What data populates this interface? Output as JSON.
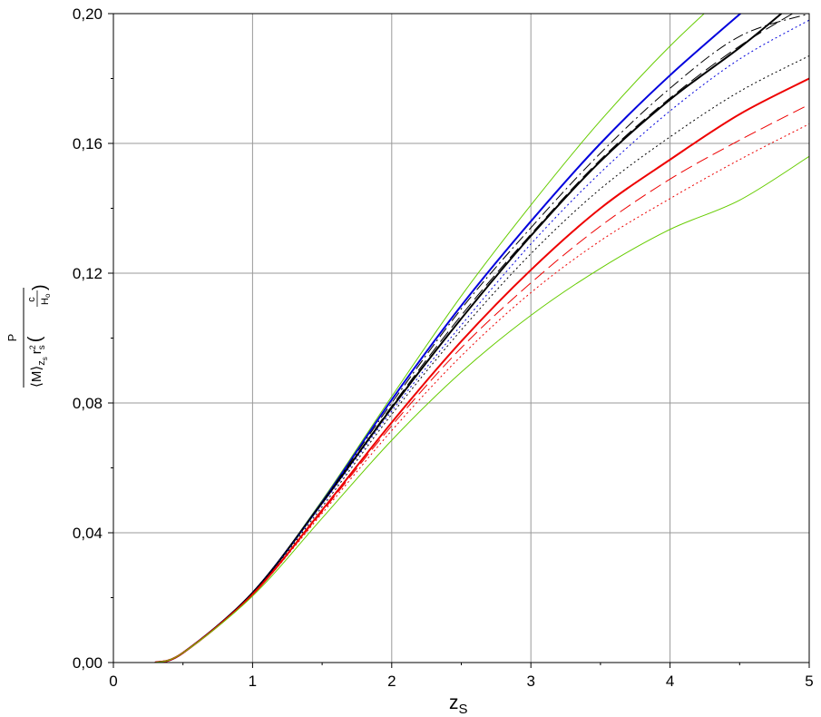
{
  "chart_data": {
    "type": "line",
    "title": "",
    "xlabel": "z",
    "xlabel_sub": "S",
    "ylabel": {
      "numerator": "P",
      "left": "⟨M⟩",
      "left_sub": "z",
      "left_subsub": "s",
      "r": "r",
      "r_sup": "2",
      "r_sub": "s",
      "frac_num": "c",
      "frac_den": "H",
      "frac_den_sub": "o"
    },
    "xlim": [
      0,
      5
    ],
    "ylim": [
      0,
      0.2
    ],
    "xticks": [
      0,
      1,
      2,
      3,
      4,
      5
    ],
    "xtick_labels": [
      "0",
      "1",
      "2",
      "3",
      "4",
      "5"
    ],
    "yticks": [
      0,
      0.04,
      0.08,
      0.12,
      0.16,
      0.2
    ],
    "ytick_labels": [
      "0,00",
      "0,04",
      "0,08",
      "0,12",
      "0,16",
      "0,20"
    ],
    "grid": true,
    "legend": "none",
    "series": [
      {
        "color": "#66cc00",
        "style": "solid",
        "width": 1,
        "x": [
          0.3,
          0.5,
          1,
          1.5,
          2,
          2.5,
          3,
          3.5,
          4,
          4.5
        ],
        "y": [
          0,
          0.003,
          0.0215,
          0.05,
          0.082,
          0.113,
          0.141,
          0.167,
          0.19,
          0.21
        ]
      },
      {
        "color": "#0000dd",
        "style": "solid",
        "width": 2,
        "x": [
          0.3,
          0.5,
          1,
          1.5,
          2,
          2.5,
          3,
          3.5,
          4,
          4.6
        ],
        "y": [
          0,
          0.003,
          0.0215,
          0.0495,
          0.081,
          0.11,
          0.136,
          0.16,
          0.181,
          0.2035
        ]
      },
      {
        "color": "#000000",
        "style": "dash-dot",
        "width": 1,
        "x": [
          0.3,
          0.5,
          1,
          1.5,
          2,
          2.5,
          3,
          3.5,
          4,
          4.5,
          5
        ],
        "y": [
          0,
          0.003,
          0.0215,
          0.0495,
          0.08,
          0.109,
          0.134,
          0.157,
          0.177,
          0.193,
          0.2
        ]
      },
      {
        "color": "#000000",
        "style": "long-dash",
        "width": 1,
        "x": [
          0.3,
          0.5,
          1,
          1.5,
          2,
          2.5,
          3,
          3.5,
          4,
          4.5,
          5
        ],
        "y": [
          0,
          0.003,
          0.0215,
          0.049,
          0.079,
          0.107,
          0.132,
          0.155,
          0.174,
          0.19,
          0.203
        ]
      },
      {
        "color": "#000000",
        "style": "solid",
        "width": 2,
        "x": [
          0.3,
          0.5,
          1,
          1.5,
          2,
          2.5,
          3,
          3.5,
          4,
          4.5,
          4.8
        ],
        "y": [
          0,
          0.003,
          0.0215,
          0.0492,
          0.0785,
          0.106,
          0.1315,
          0.1545,
          0.1735,
          0.1895,
          0.2
        ]
      },
      {
        "color": "#0000dd",
        "style": "dotted",
        "width": 1,
        "x": [
          0.3,
          0.5,
          1,
          1.5,
          2,
          2.5,
          3,
          3.5,
          4,
          4.5,
          5
        ],
        "y": [
          0,
          0.003,
          0.0215,
          0.0488,
          0.0775,
          0.104,
          0.129,
          0.151,
          0.17,
          0.186,
          0.198
        ]
      },
      {
        "color": "#000000",
        "style": "dotted",
        "width": 1,
        "x": [
          0.3,
          0.5,
          1,
          1.5,
          2,
          2.5,
          3,
          3.5,
          4,
          4.5,
          5
        ],
        "y": [
          0,
          0.003,
          0.0215,
          0.048,
          0.0765,
          0.1025,
          0.126,
          0.146,
          0.162,
          0.176,
          0.187
        ]
      },
      {
        "color": "#ee0000",
        "style": "solid",
        "width": 2,
        "x": [
          0.3,
          0.5,
          1,
          1.5,
          2,
          2.5,
          3,
          3.5,
          4,
          4.5,
          5
        ],
        "y": [
          0,
          0.003,
          0.021,
          0.047,
          0.074,
          0.099,
          0.121,
          0.14,
          0.155,
          0.169,
          0.18
        ]
      },
      {
        "color": "#ee0000",
        "style": "long-dash",
        "width": 1,
        "x": [
          0.3,
          0.5,
          1,
          1.5,
          2,
          2.5,
          3,
          3.5,
          4,
          4.5,
          5
        ],
        "y": [
          0,
          0.003,
          0.021,
          0.0465,
          0.073,
          0.097,
          0.117,
          0.1345,
          0.149,
          0.161,
          0.172
        ]
      },
      {
        "color": "#ee0000",
        "style": "dotted",
        "width": 1,
        "x": [
          0.3,
          0.5,
          1,
          1.5,
          2,
          2.5,
          3,
          3.5,
          4,
          4.5,
          5
        ],
        "y": [
          0,
          0.003,
          0.021,
          0.046,
          0.0715,
          0.0945,
          0.114,
          0.13,
          0.143,
          0.155,
          0.166
        ]
      },
      {
        "color": "#66cc00",
        "style": "solid",
        "width": 1,
        "x": [
          0.3,
          0.5,
          1,
          1.5,
          2,
          2.5,
          3,
          3.5,
          4,
          4.5,
          5
        ],
        "y": [
          0,
          0.003,
          0.0205,
          0.0445,
          0.0685,
          0.0895,
          0.107,
          0.1215,
          0.1335,
          0.1425,
          0.156
        ]
      }
    ]
  }
}
